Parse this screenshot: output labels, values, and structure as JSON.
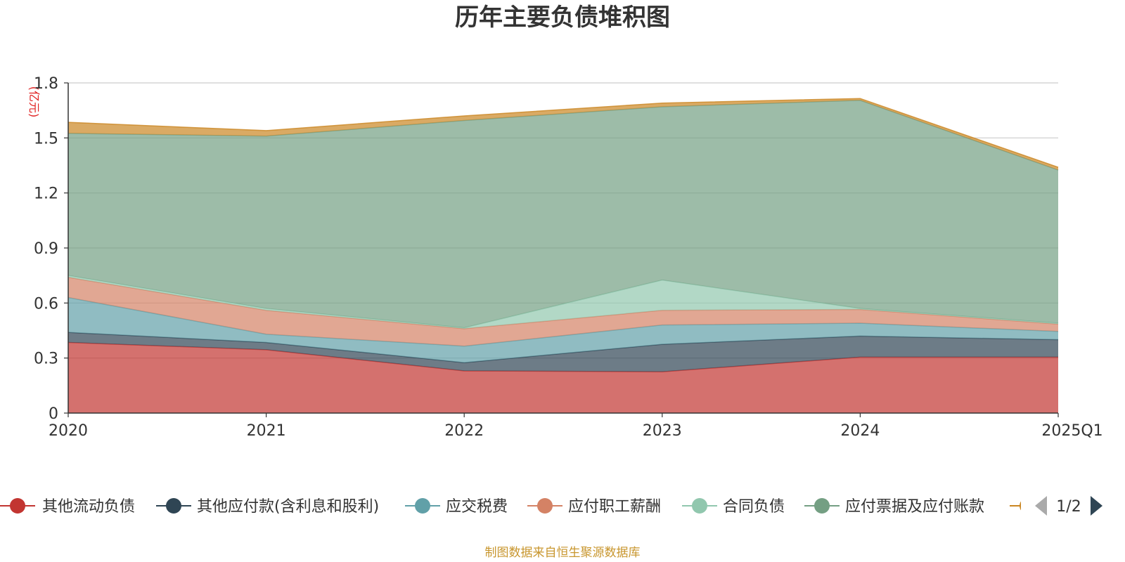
{
  "chart_data": {
    "type": "area",
    "title": "历年主要负债堆积图",
    "unit_label": "(亿元)",
    "categories": [
      "2020",
      "2021",
      "2022",
      "2023",
      "2024",
      "2025Q1"
    ],
    "y_ticks": [
      "0",
      "0.3",
      "0.6",
      "0.9",
      "1.2",
      "1.5",
      "1.8"
    ],
    "ylim": [
      0,
      1.8
    ],
    "stacked": true,
    "grid": true,
    "legend_position": "bottom",
    "series": [
      {
        "name": "其他流动负债",
        "color": "#c23531",
        "values": [
          0.385,
          0.345,
          0.23,
          0.225,
          0.305,
          0.305
        ]
      },
      {
        "name": "其他应付款(含利息和股利)",
        "color": "#2f4554",
        "values": [
          0.055,
          0.04,
          0.045,
          0.15,
          0.115,
          0.095
        ]
      },
      {
        "name": "应交税费",
        "color": "#61a0a8",
        "values": [
          0.19,
          0.045,
          0.09,
          0.105,
          0.07,
          0.045
        ]
      },
      {
        "name": "应付职工薪酬",
        "color": "#d48265",
        "values": [
          0.11,
          0.13,
          0.095,
          0.08,
          0.075,
          0.04
        ]
      },
      {
        "name": "合同负债",
        "color": "#91c7ae",
        "values": [
          0.01,
          0.01,
          0.005,
          0.165,
          0.005,
          0.005
        ]
      },
      {
        "name": "应付票据及应付账款",
        "color": "#749f83",
        "values": [
          0.775,
          0.94,
          1.13,
          0.945,
          1.135,
          0.835
        ]
      },
      {
        "name": "",
        "color": "#ca8622",
        "values": [
          0.06,
          0.03,
          0.025,
          0.02,
          0.01,
          0.015
        ]
      }
    ]
  },
  "legend": {
    "page": "1/2"
  },
  "source_note": "制图数据来自恒生聚源数据库"
}
